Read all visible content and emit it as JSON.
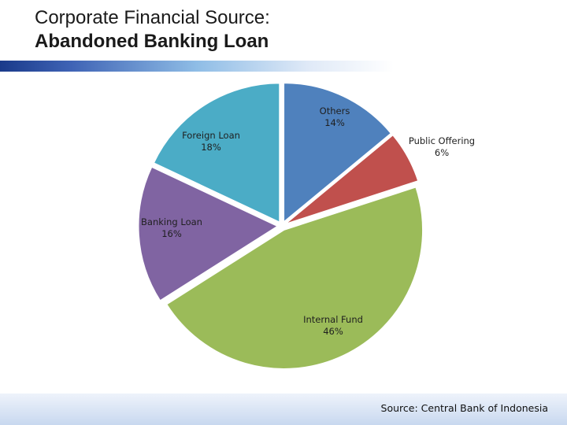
{
  "title": {
    "line1": "Corporate Financial Source:",
    "line2": "Abandoned Banking Loan"
  },
  "source": "Source: Central Bank of Indonesia",
  "chart_data": {
    "type": "pie",
    "title": "",
    "slices": [
      {
        "label": "Others",
        "value": 14,
        "pct_label": "14%",
        "color": "#4f81bd"
      },
      {
        "label": "Public Offering",
        "value": 6,
        "pct_label": "6%",
        "color": "#c0504d"
      },
      {
        "label": "Internal Fund",
        "value": 46,
        "pct_label": "46%",
        "color": "#9bbb59"
      },
      {
        "label": "Banking Loan",
        "value": 16,
        "pct_label": "16%",
        "color": "#8064a2"
      },
      {
        "label": "Foreign Loan",
        "value": 18,
        "pct_label": "18%",
        "color": "#4bacc6"
      }
    ],
    "start_angle_deg": 0,
    "direction": "clockwise",
    "exploded": true
  }
}
